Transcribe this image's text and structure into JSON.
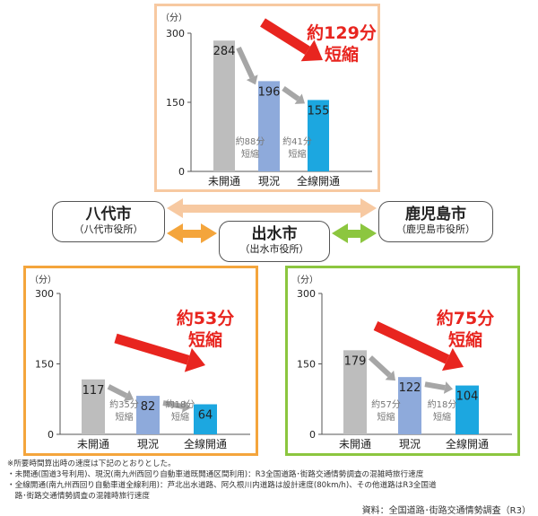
{
  "chart_data": [
    {
      "type": "bar",
      "unit_label": "（分）",
      "ylim": [
        0,
        300
      ],
      "yticks": [
        "300",
        "150",
        "0"
      ],
      "categories": [
        "未開通",
        "現況",
        "全線開通"
      ],
      "values": [
        284,
        196,
        155
      ],
      "value_labels": [
        "284",
        "196",
        "155"
      ],
      "bar_colors": [
        "#bdbdbd",
        "#8eaadb",
        "#1ca7e0"
      ],
      "step_labels": [
        [
          "約88分",
          "短縮"
        ],
        [
          "約41分",
          "短縮"
        ]
      ],
      "headline": [
        "約129分",
        "短縮"
      ],
      "headline_color": "#e8251f"
    },
    {
      "type": "bar",
      "unit_label": "（分）",
      "ylim": [
        0,
        300
      ],
      "yticks": [
        "300",
        "150",
        "0"
      ],
      "categories": [
        "未開通",
        "現況",
        "全線開通"
      ],
      "values": [
        117,
        82,
        64
      ],
      "value_labels": [
        "117",
        "82",
        "64"
      ],
      "bar_colors": [
        "#bdbdbd",
        "#8eaadb",
        "#1ca7e0"
      ],
      "step_labels": [
        [
          "約35分",
          "短縮"
        ],
        [
          "約18分",
          "短縮"
        ]
      ],
      "headline": [
        "約53分",
        "短縮"
      ],
      "headline_color": "#e8251f"
    },
    {
      "type": "bar",
      "unit_label": "（分）",
      "ylim": [
        0,
        300
      ],
      "yticks": [
        "300",
        "150",
        "0"
      ],
      "categories": [
        "未開通",
        "現況",
        "全線開通"
      ],
      "values": [
        179,
        122,
        104
      ],
      "value_labels": [
        "179",
        "122",
        "104"
      ],
      "bar_colors": [
        "#bdbdbd",
        "#8eaadb",
        "#1ca7e0"
      ],
      "step_labels": [
        [
          "約57分",
          "短縮"
        ],
        [
          "約18分",
          "短縮"
        ]
      ],
      "headline": [
        "約75分",
        "短縮"
      ],
      "headline_color": "#e8251f"
    }
  ],
  "cities": {
    "yatsushiro": {
      "name": "八代市",
      "office": "（八代市役所）"
    },
    "izumi": {
      "name": "出水市",
      "office": "（出水市役所）"
    },
    "kagoshima": {
      "name": "鹿児島市",
      "office": "（鹿児島市役所）"
    }
  },
  "connector_colors": {
    "top": "#f7c9a1",
    "left": "#f4a53c",
    "right": "#8cc63f"
  },
  "footnotes": [
    "※所要時間算出時の速度は下記のとおりとした。",
    "・未開通(国道3号利用)、現況(南九州西回り自動車道既開通区間利用)：R3全国道路･街路交通情勢調査の混雑時旅行速度",
    "・全線開通(南九州西回り自動車道全線利用)：芦北出水道路、阿久根川内道路は設計速度(80km/h)、その他道路はR3全国道",
    "　路･街路交通情勢調査の混雑時旅行速度"
  ],
  "source": "資料：全国道路･街路交通情勢調査（R3）"
}
